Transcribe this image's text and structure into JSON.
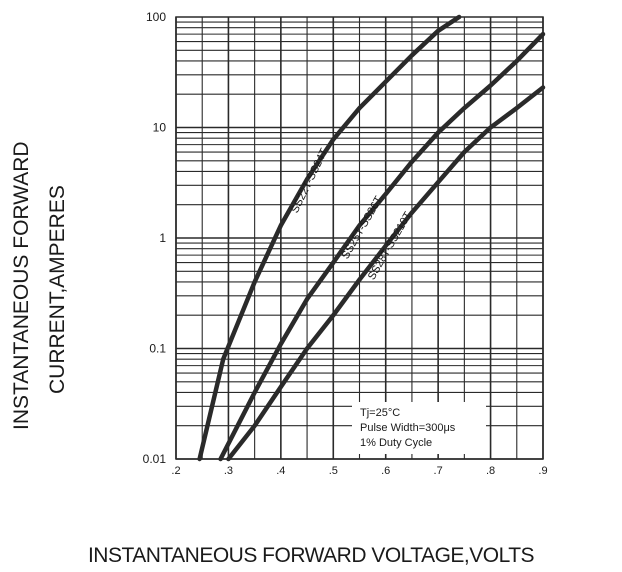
{
  "chart_data": {
    "type": "line",
    "xlabel": "INSTANTANEOUS FORWARD VOLTAGE,VOLTS",
    "ylabel_lines": [
      "INSTANTANEOUS FORWARD",
      "CURRENT,AMPERES"
    ],
    "xlim": [
      0.2,
      0.9
    ],
    "ylim": [
      0.01,
      100
    ],
    "yscale": "log",
    "grid": true,
    "x_ticks": [
      {
        "value": 0.2,
        "label": ".2"
      },
      {
        "value": 0.3,
        "label": ".3"
      },
      {
        "value": 0.4,
        "label": ".4"
      },
      {
        "value": 0.5,
        "label": ".5"
      },
      {
        "value": 0.6,
        "label": ".6"
      },
      {
        "value": 0.7,
        "label": ".7"
      },
      {
        "value": 0.8,
        "label": ".8"
      },
      {
        "value": 0.9,
        "label": ".9"
      }
    ],
    "y_ticks": [
      {
        "value": 0.01,
        "label": "0.01"
      },
      {
        "value": 0.1,
        "label": "0.1"
      },
      {
        "value": 1,
        "label": "1"
      },
      {
        "value": 10,
        "label": "10"
      },
      {
        "value": 100,
        "label": "100"
      }
    ],
    "series": [
      {
        "name": "SS22T-SS24T",
        "x": [
          0.245,
          0.29,
          0.35,
          0.4,
          0.45,
          0.5,
          0.55,
          0.6,
          0.65,
          0.7,
          0.74
        ],
        "y": [
          0.01,
          0.08,
          0.4,
          1.3,
          3.4,
          7.8,
          15,
          26,
          45,
          75,
          100
        ]
      },
      {
        "name": "SS25T-SS26T",
        "x": [
          0.285,
          0.35,
          0.4,
          0.45,
          0.5,
          0.55,
          0.6,
          0.65,
          0.7,
          0.75,
          0.8,
          0.85,
          0.9
        ],
        "y": [
          0.01,
          0.04,
          0.11,
          0.28,
          0.6,
          1.3,
          2.5,
          4.9,
          9,
          15,
          24,
          40,
          70
        ]
      },
      {
        "name": "SS28T-SS210T",
        "x": [
          0.3,
          0.35,
          0.4,
          0.45,
          0.5,
          0.55,
          0.6,
          0.65,
          0.7,
          0.75,
          0.8,
          0.85,
          0.9
        ],
        "y": [
          0.01,
          0.02,
          0.045,
          0.1,
          0.2,
          0.42,
          0.85,
          1.7,
          3.2,
          6,
          10,
          15,
          23
        ]
      }
    ],
    "annotation_lines": [
      "Tj=25°C",
      "Pulse Width=300μs",
      "1% Duty Cycle"
    ],
    "colors": {
      "line": "#2a2a2a",
      "grid": "#2a2a2a",
      "text": "#1a1a1a"
    }
  }
}
